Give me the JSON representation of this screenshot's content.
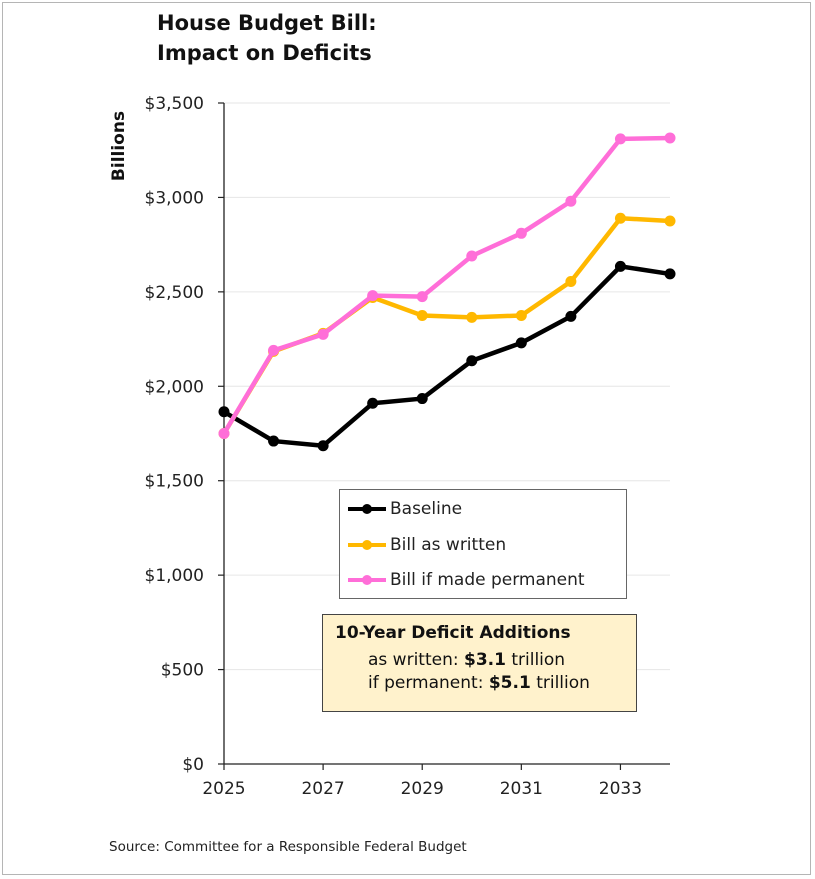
{
  "title_line1": "House Budget Bill:",
  "title_line2": "Impact on Deficits",
  "source": "Source: Committee for a Responsible Federal Budget",
  "callout": {
    "heading": "10-Year Deficit Additions",
    "written_prefix": "as written: ",
    "written_value": "$3.1",
    "written_suffix": " trillion",
    "permanent_prefix": "if permanent: ",
    "permanent_value": "$5.1",
    "permanent_suffix": " trillion"
  },
  "chart_data": {
    "type": "line",
    "title": "House Budget Bill: Impact on Deficits",
    "xlabel": "",
    "ylabel": "Billions",
    "x": [
      2025,
      2026,
      2027,
      2028,
      2029,
      2030,
      2031,
      2032,
      2033,
      2034
    ],
    "xticks": [
      2025,
      2027,
      2029,
      2031,
      2033
    ],
    "xlim": [
      2025,
      2034
    ],
    "ylim": [
      0,
      3500
    ],
    "yticks": [
      0,
      500,
      1000,
      1500,
      2000,
      2500,
      3000,
      3500
    ],
    "ytick_labels": [
      "$0",
      "$500",
      "$1,000",
      "$1,500",
      "$2,000",
      "$2,500",
      "$3,000",
      "$3,500"
    ],
    "grid": "horizontal",
    "legend_position": "lower-center",
    "series": [
      {
        "name": "Baseline",
        "color": "#000000",
        "values": [
          1865,
          1710,
          1685,
          1910,
          1935,
          2135,
          2230,
          2370,
          2635,
          2595
        ]
      },
      {
        "name": "Bill as written",
        "color": "#ffb800",
        "values": [
          1750,
          2185,
          2280,
          2470,
          2375,
          2365,
          2375,
          2555,
          2890,
          2875
        ]
      },
      {
        "name": "Bill if made permanent",
        "color": "#ff6ed8",
        "values": [
          1750,
          2190,
          2275,
          2480,
          2475,
          2690,
          2810,
          2980,
          3310,
          3315
        ]
      }
    ]
  }
}
